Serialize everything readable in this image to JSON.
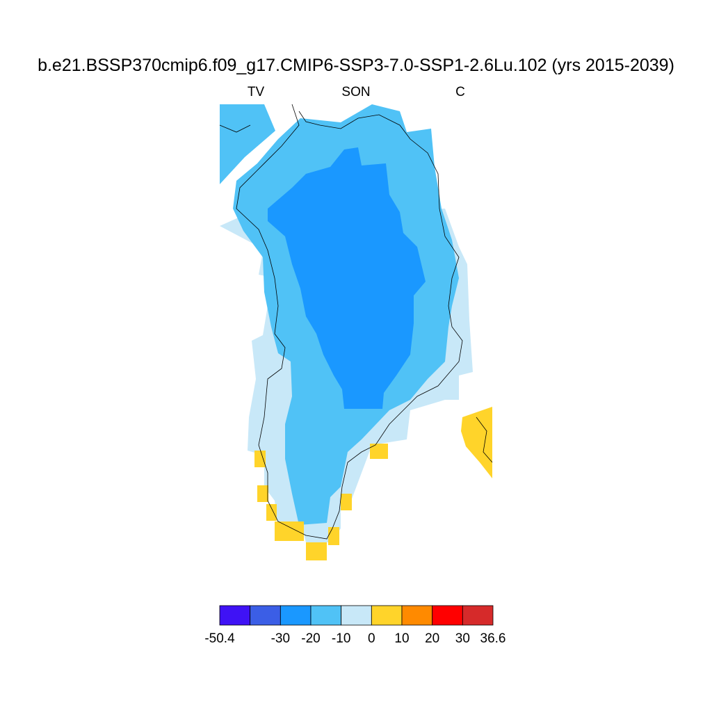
{
  "title": "b.e21.BSSP370cmip6.f09_g17.CMIP6-SSP3-7.0-SSP1-2.6Lu.102 (yrs 2015-2039)",
  "left_label": "TV",
  "center_label": "SON",
  "right_label": "C",
  "colorbar": {
    "colors": [
      "#3f12f5",
      "#3b5ee6",
      "#1a98ff",
      "#50c2f6",
      "#c8e8f8",
      "#ffd42a",
      "#ff8a00",
      "#ff0000",
      "#d62a2a"
    ],
    "levels": [
      -50.4,
      null,
      -30,
      -20,
      -10,
      0,
      10,
      20,
      30,
      36.6
    ]
  }
}
